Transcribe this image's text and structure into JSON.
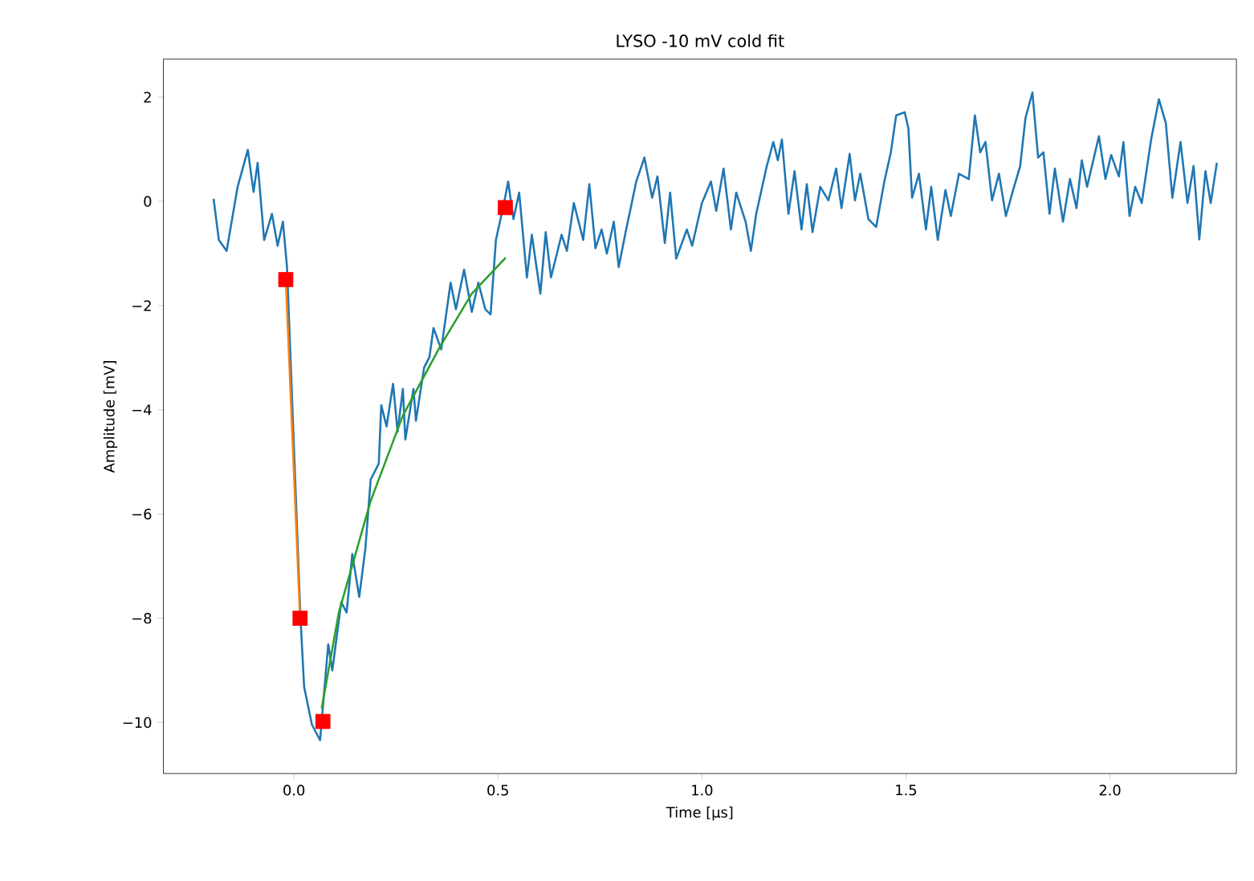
{
  "chart_data": {
    "type": "line",
    "title": "LYSO -10 mV cold fit",
    "xlabel": "Time [μs]",
    "ylabel": "Amplitude [mV]",
    "xlim": [
      -0.32,
      2.31
    ],
    "ylim": [
      -10.98,
      2.73
    ],
    "xticks": [
      {
        "value": 0,
        "label": "0.0"
      },
      {
        "value": 0.5,
        "label": "0.5"
      },
      {
        "value": 1,
        "label": "1.0"
      },
      {
        "value": 1.5,
        "label": "1.5"
      },
      {
        "value": 2,
        "label": "2.0"
      }
    ],
    "yticks": [
      {
        "value": -10,
        "label": "−10"
      },
      {
        "value": -8,
        "label": "−8"
      },
      {
        "value": -6,
        "label": "−6"
      },
      {
        "value": -4,
        "label": "−4"
      },
      {
        "value": -2,
        "label": "−2"
      },
      {
        "value": 0,
        "label": "0"
      },
      {
        "value": 2,
        "label": "2"
      }
    ],
    "series": [
      {
        "color": "#1f77b4",
        "x": [
          -0.197,
          -0.184,
          -0.165,
          -0.138,
          -0.113,
          -0.099,
          -0.089,
          -0.073,
          -0.054,
          -0.04,
          -0.027,
          -0.017,
          0.016,
          0.025,
          0.044,
          0.064,
          0.084,
          0.094,
          0.116,
          0.129,
          0.143,
          0.16,
          0.175,
          0.188,
          0.208,
          0.214,
          0.227,
          0.243,
          0.254,
          0.267,
          0.273,
          0.293,
          0.299,
          0.319,
          0.332,
          0.342,
          0.361,
          0.384,
          0.397,
          0.417,
          0.436,
          0.452,
          0.469,
          0.482,
          0.495,
          0.515,
          0.525,
          0.538,
          0.552,
          0.571,
          0.583,
          0.604,
          0.617,
          0.63,
          0.656,
          0.669,
          0.686,
          0.709,
          0.724,
          0.739,
          0.754,
          0.767,
          0.784,
          0.796,
          0.813,
          0.839,
          0.859,
          0.878,
          0.891,
          0.909,
          0.922,
          0.937,
          0.963,
          0.976,
          1.0,
          1.022,
          1.035,
          1.053,
          1.071,
          1.084,
          1.107,
          1.12,
          1.133,
          1.159,
          1.175,
          1.186,
          1.196,
          1.212,
          1.227,
          1.244,
          1.257,
          1.271,
          1.29,
          1.31,
          1.329,
          1.342,
          1.362,
          1.375,
          1.388,
          1.408,
          1.427,
          1.447,
          1.463,
          1.476,
          1.497,
          1.506,
          1.515,
          1.532,
          1.549,
          1.562,
          1.578,
          1.597,
          1.61,
          1.63,
          1.654,
          1.669,
          1.682,
          1.695,
          1.711,
          1.728,
          1.745,
          1.761,
          1.78,
          1.793,
          1.81,
          1.824,
          1.837,
          1.852,
          1.865,
          1.885,
          1.902,
          1.918,
          1.931,
          1.944,
          1.973,
          1.989,
          2.003,
          2.022,
          2.033,
          2.048,
          2.062,
          2.078,
          2.101,
          2.12,
          2.137,
          2.153,
          2.173,
          2.19,
          2.205,
          2.219,
          2.234,
          2.247,
          2.262
        ],
        "values": [
          0.05,
          -0.74,
          -0.95,
          0.28,
          0.99,
          0.18,
          0.74,
          -0.74,
          -0.24,
          -0.85,
          -0.39,
          -1.26,
          -7.99,
          -9.32,
          -10.04,
          -10.34,
          -8.5,
          -9.0,
          -7.69,
          -7.89,
          -6.77,
          -7.59,
          -6.67,
          -5.34,
          -5.03,
          -3.91,
          -4.32,
          -3.5,
          -4.42,
          -3.6,
          -4.57,
          -3.6,
          -4.21,
          -3.19,
          -2.99,
          -2.43,
          -2.84,
          -1.56,
          -2.07,
          -1.31,
          -2.12,
          -1.56,
          -2.07,
          -2.17,
          -0.74,
          -0.03,
          0.38,
          -0.34,
          0.17,
          -1.46,
          -0.64,
          -1.77,
          -0.59,
          -1.46,
          -0.64,
          -0.95,
          -0.03,
          -0.74,
          0.33,
          -0.9,
          -0.54,
          -1.0,
          -0.39,
          -1.26,
          -0.59,
          0.38,
          0.84,
          0.07,
          0.48,
          -0.8,
          0.17,
          -1.1,
          -0.54,
          -0.85,
          -0.03,
          0.38,
          -0.18,
          0.63,
          -0.54,
          0.17,
          -0.39,
          -0.95,
          -0.24,
          0.68,
          1.14,
          0.79,
          1.19,
          -0.24,
          0.58,
          -0.54,
          0.33,
          -0.59,
          0.28,
          0.02,
          0.63,
          -0.13,
          0.91,
          0.02,
          0.53,
          -0.34,
          -0.49,
          0.38,
          0.94,
          1.65,
          1.71,
          1.4,
          0.07,
          0.53,
          -0.54,
          0.28,
          -0.74,
          0.22,
          -0.28,
          0.53,
          0.43,
          1.65,
          0.94,
          1.14,
          0.02,
          0.53,
          -0.28,
          0.17,
          0.68,
          1.6,
          2.09,
          0.84,
          0.94,
          -0.24,
          0.63,
          -0.39,
          0.43,
          -0.13,
          0.79,
          0.28,
          1.25,
          0.43,
          0.89,
          0.48,
          1.14,
          -0.28,
          0.28,
          -0.03,
          1.19,
          1.96,
          1.5,
          0.07,
          1.14,
          -0.03,
          0.68,
          -0.73,
          0.58,
          -0.03,
          0.74
        ]
      },
      {
        "color": "#ff7f0e",
        "x": [
          -0.02,
          0.015
        ],
        "values": [
          -1.5,
          -8.0
        ]
      },
      {
        "color": "#2ca02c",
        "x": [
          0.068,
          0.11,
          0.188,
          0.267,
          0.358,
          0.436,
          0.519
        ],
        "values": [
          -9.73,
          -7.89,
          -5.75,
          -4.11,
          -2.79,
          -1.77,
          -1.08
        ]
      },
      {
        "type": "scatter",
        "color": "#ff0000",
        "marker": "square",
        "x": [
          -0.02,
          0.015,
          0.071,
          0.518
        ],
        "values": [
          -1.5,
          -8.0,
          -9.98,
          -0.12
        ]
      }
    ]
  }
}
